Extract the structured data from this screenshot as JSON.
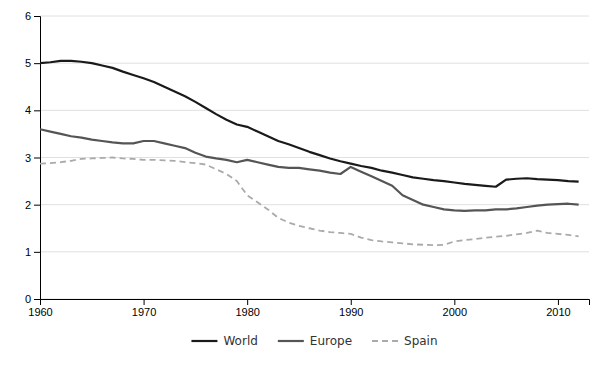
{
  "chart_data": {
    "type": "line",
    "x": [
      1960,
      1961,
      1962,
      1963,
      1964,
      1965,
      1966,
      1967,
      1968,
      1969,
      1970,
      1971,
      1972,
      1973,
      1974,
      1975,
      1976,
      1977,
      1978,
      1979,
      1980,
      1981,
      1982,
      1983,
      1984,
      1985,
      1986,
      1987,
      1988,
      1989,
      1990,
      1991,
      1992,
      1993,
      1994,
      1995,
      1996,
      1997,
      1998,
      1999,
      2000,
      2001,
      2002,
      2003,
      2004,
      2005,
      2006,
      2007,
      2008,
      2009,
      2010,
      2011,
      2012
    ],
    "series": [
      {
        "name": "World",
        "color": "#1a1a1a",
        "line_style": "solid",
        "values": [
          5.0,
          5.02,
          5.05,
          5.05,
          5.03,
          5.0,
          4.95,
          4.9,
          4.82,
          4.75,
          4.68,
          4.6,
          4.5,
          4.4,
          4.3,
          4.18,
          4.05,
          3.92,
          3.8,
          3.7,
          3.65,
          3.55,
          3.45,
          3.35,
          3.28,
          3.2,
          3.12,
          3.05,
          2.98,
          2.92,
          2.87,
          2.82,
          2.78,
          2.72,
          2.68,
          2.63,
          2.58,
          2.55,
          2.52,
          2.5,
          2.47,
          2.44,
          2.42,
          2.4,
          2.38,
          2.53,
          2.55,
          2.56,
          2.54,
          2.53,
          2.52,
          2.5,
          2.49
        ]
      },
      {
        "name": "Europe",
        "color": "#555555",
        "line_style": "solid",
        "values": [
          3.6,
          3.55,
          3.5,
          3.45,
          3.42,
          3.38,
          3.35,
          3.32,
          3.3,
          3.3,
          3.35,
          3.35,
          3.3,
          3.25,
          3.2,
          3.1,
          3.02,
          2.98,
          2.95,
          2.9,
          2.95,
          2.9,
          2.85,
          2.8,
          2.78,
          2.78,
          2.75,
          2.72,
          2.68,
          2.65,
          2.8,
          2.7,
          2.6,
          2.5,
          2.4,
          2.2,
          2.1,
          2.0,
          1.95,
          1.9,
          1.88,
          1.87,
          1.88,
          1.88,
          1.9,
          1.9,
          1.92,
          1.95,
          1.98,
          2.0,
          2.01,
          2.02,
          2.0
        ]
      },
      {
        "name": "Spain",
        "color": "#aaaaaa",
        "line_style": "dashed",
        "values": [
          2.87,
          2.88,
          2.9,
          2.93,
          2.97,
          2.98,
          2.99,
          3.0,
          2.98,
          2.97,
          2.95,
          2.95,
          2.94,
          2.93,
          2.9,
          2.88,
          2.85,
          2.75,
          2.65,
          2.5,
          2.2,
          2.05,
          1.9,
          1.72,
          1.62,
          1.55,
          1.5,
          1.45,
          1.42,
          1.4,
          1.38,
          1.3,
          1.25,
          1.22,
          1.2,
          1.18,
          1.16,
          1.15,
          1.14,
          1.15,
          1.22,
          1.25,
          1.27,
          1.3,
          1.32,
          1.34,
          1.37,
          1.4,
          1.45,
          1.4,
          1.38,
          1.36,
          1.33
        ]
      }
    ],
    "xlim": [
      1960,
      2013
    ],
    "ylim": [
      0,
      6
    ],
    "xticks": [
      1960,
      1970,
      1980,
      1990,
      2000,
      2010
    ],
    "yticks": [
      0,
      1,
      2,
      3,
      4,
      5,
      6
    ],
    "grid": "y",
    "legend": "bottom"
  }
}
